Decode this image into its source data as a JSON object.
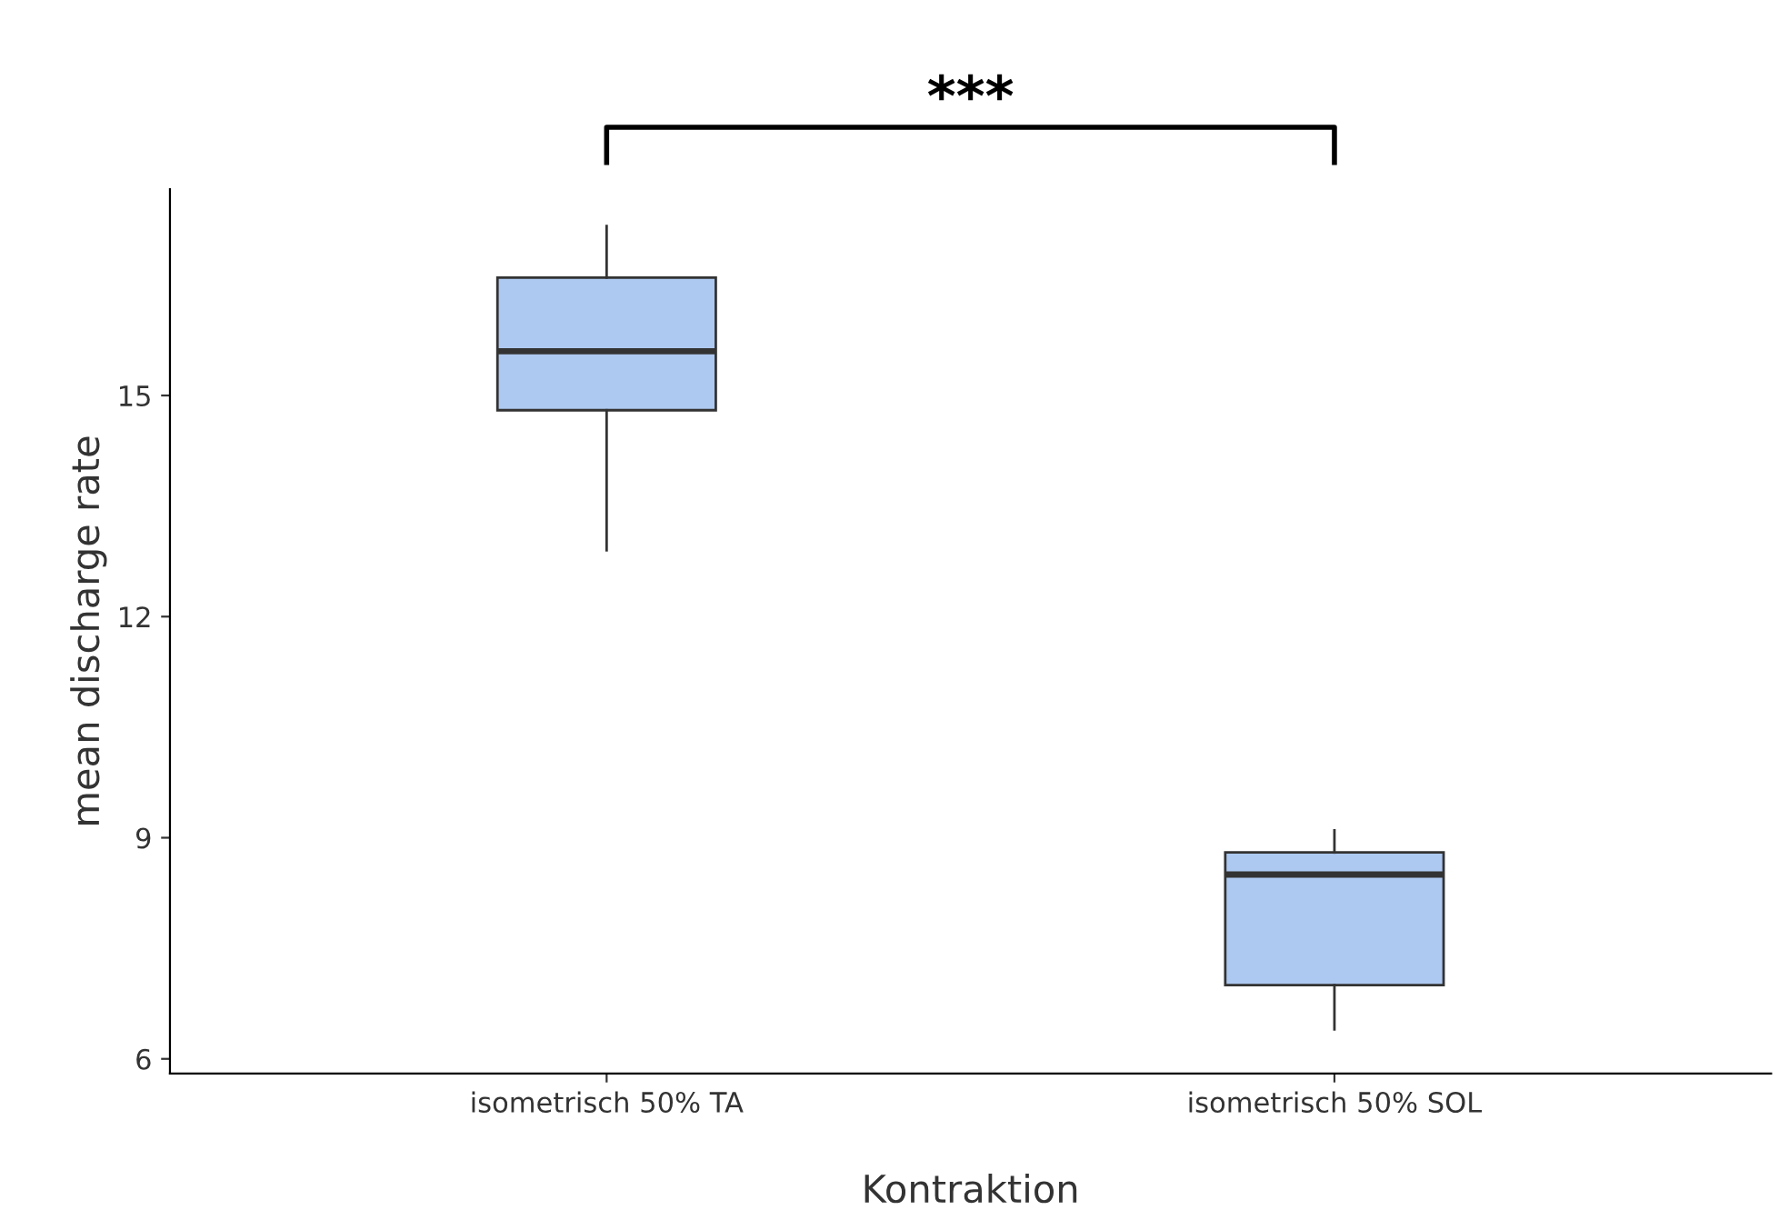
{
  "chart_data": {
    "type": "box",
    "xlabel": "Kontraktion",
    "ylabel": "mean discharge rate",
    "categories": [
      "isometrisch 50% TA",
      "isometrisch 50% SOL"
    ],
    "boxes": [
      {
        "low": 12.9,
        "q1": 14.8,
        "median": 15.6,
        "q3": 16.6,
        "high": 17.3
      },
      {
        "low": 6.4,
        "q1": 7.0,
        "median": 8.5,
        "q3": 8.8,
        "high": 9.1
      }
    ],
    "color": "#aec9f1",
    "ylim": [
      5.8,
      17.8
    ],
    "yticks": [
      6,
      9,
      12,
      15
    ],
    "grid": false,
    "legend": false,
    "annotations": [
      "***"
    ]
  }
}
